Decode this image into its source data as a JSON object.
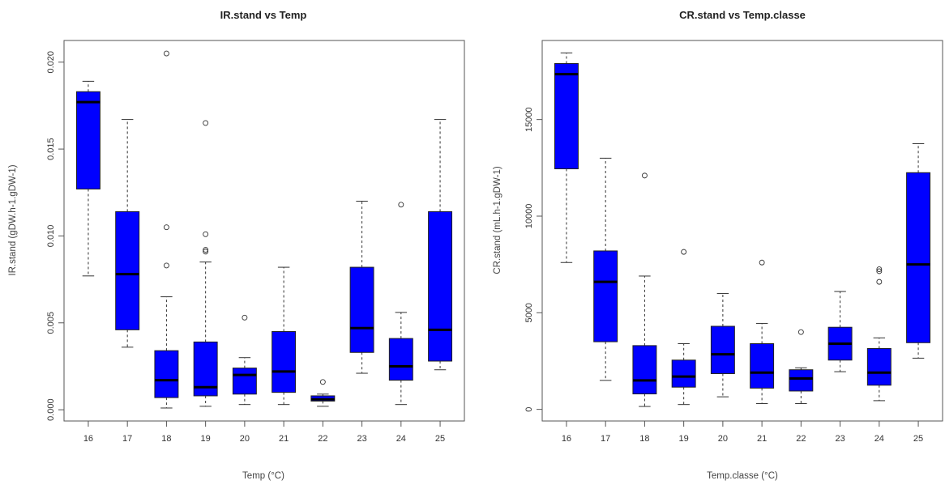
{
  "chart_data": [
    {
      "type": "boxplot",
      "title": "IR.stand vs Temp",
      "xlabel": "Temp (°C)",
      "ylabel": "IR.stand (gDW.h-1.gDW-1)",
      "ylim": [
        -0.0006,
        0.0212
      ],
      "yticks": [
        0.0,
        0.005,
        0.01,
        0.015,
        0.02
      ],
      "ytick_labels": [
        "0.000",
        "0.005",
        "0.010",
        "0.015",
        "0.020"
      ],
      "categories": [
        "16",
        "17",
        "18",
        "19",
        "20",
        "21",
        "22",
        "23",
        "24",
        "25"
      ],
      "fill_color": "#0000ff",
      "boxes": [
        {
          "min": 0.0077,
          "q1": 0.0127,
          "median": 0.0177,
          "q3": 0.0183,
          "max": 0.0189,
          "outliers": []
        },
        {
          "min": 0.0036,
          "q1": 0.0046,
          "median": 0.0078,
          "q3": 0.0114,
          "max": 0.0167,
          "outliers": []
        },
        {
          "min": 0.0001,
          "q1": 0.0007,
          "median": 0.0017,
          "q3": 0.0034,
          "max": 0.0065,
          "outliers": [
            0.0083,
            0.0105,
            0.0205
          ]
        },
        {
          "min": 0.0002,
          "q1": 0.0008,
          "median": 0.0013,
          "q3": 0.0039,
          "max": 0.0085,
          "outliers": [
            0.0091,
            0.0092,
            0.0101,
            0.0165
          ]
        },
        {
          "min": 0.0003,
          "q1": 0.0009,
          "median": 0.002,
          "q3": 0.0024,
          "max": 0.003,
          "outliers": [
            0.0053
          ]
        },
        {
          "min": 0.0003,
          "q1": 0.001,
          "median": 0.0022,
          "q3": 0.0045,
          "max": 0.0082,
          "outliers": []
        },
        {
          "min": 0.0002,
          "q1": 0.0005,
          "median": 0.0006,
          "q3": 0.0008,
          "max": 0.0009,
          "outliers": [
            0.0016
          ]
        },
        {
          "min": 0.0021,
          "q1": 0.0033,
          "median": 0.0047,
          "q3": 0.0082,
          "max": 0.012,
          "outliers": []
        },
        {
          "min": 0.0003,
          "q1": 0.0017,
          "median": 0.0025,
          "q3": 0.0041,
          "max": 0.0056,
          "outliers": [
            0.0118
          ]
        },
        {
          "min": 0.0023,
          "q1": 0.0028,
          "median": 0.0046,
          "q3": 0.0114,
          "max": 0.0167,
          "outliers": []
        }
      ]
    },
    {
      "type": "boxplot",
      "title": "CR.stand vs Temp.classe",
      "xlabel": "Temp.classe (°C)",
      "ylabel": "CR.stand (mL.h-1.gDW-1)",
      "ylim": [
        -560,
        19050
      ],
      "yticks": [
        0,
        5000,
        10000,
        15000
      ],
      "ytick_labels": [
        "0",
        "5000",
        "10000",
        "15000"
      ],
      "categories": [
        "16",
        "17",
        "18",
        "19",
        "20",
        "21",
        "22",
        "23",
        "24",
        "25"
      ],
      "fill_color": "#0000ff",
      "boxes": [
        {
          "min": 7600,
          "q1": 12450,
          "median": 17350,
          "q3": 17900,
          "max": 18450,
          "outliers": []
        },
        {
          "min": 1500,
          "q1": 3500,
          "median": 6600,
          "q3": 8200,
          "max": 13000,
          "outliers": []
        },
        {
          "min": 150,
          "q1": 800,
          "median": 1500,
          "q3": 3300,
          "max": 6900,
          "outliers": [
            12100
          ]
        },
        {
          "min": 250,
          "q1": 1150,
          "median": 1700,
          "q3": 2550,
          "max": 3400,
          "outliers": [
            8150
          ]
        },
        {
          "min": 650,
          "q1": 1850,
          "median": 2850,
          "q3": 4300,
          "max": 6000,
          "outliers": []
        },
        {
          "min": 300,
          "q1": 1100,
          "median": 1900,
          "q3": 3400,
          "max": 4450,
          "outliers": [
            7600
          ]
        },
        {
          "min": 300,
          "q1": 950,
          "median": 1600,
          "q3": 2050,
          "max": 2150,
          "outliers": [
            4000
          ]
        },
        {
          "min": 1950,
          "q1": 2550,
          "median": 3400,
          "q3": 4250,
          "max": 6100,
          "outliers": []
        },
        {
          "min": 450,
          "q1": 1250,
          "median": 1900,
          "q3": 3150,
          "max": 3700,
          "outliers": [
            6600,
            7150,
            7250
          ]
        },
        {
          "min": 2650,
          "q1": 3450,
          "median": 7500,
          "q3": 12250,
          "max": 13750,
          "outliers": []
        }
      ]
    }
  ]
}
